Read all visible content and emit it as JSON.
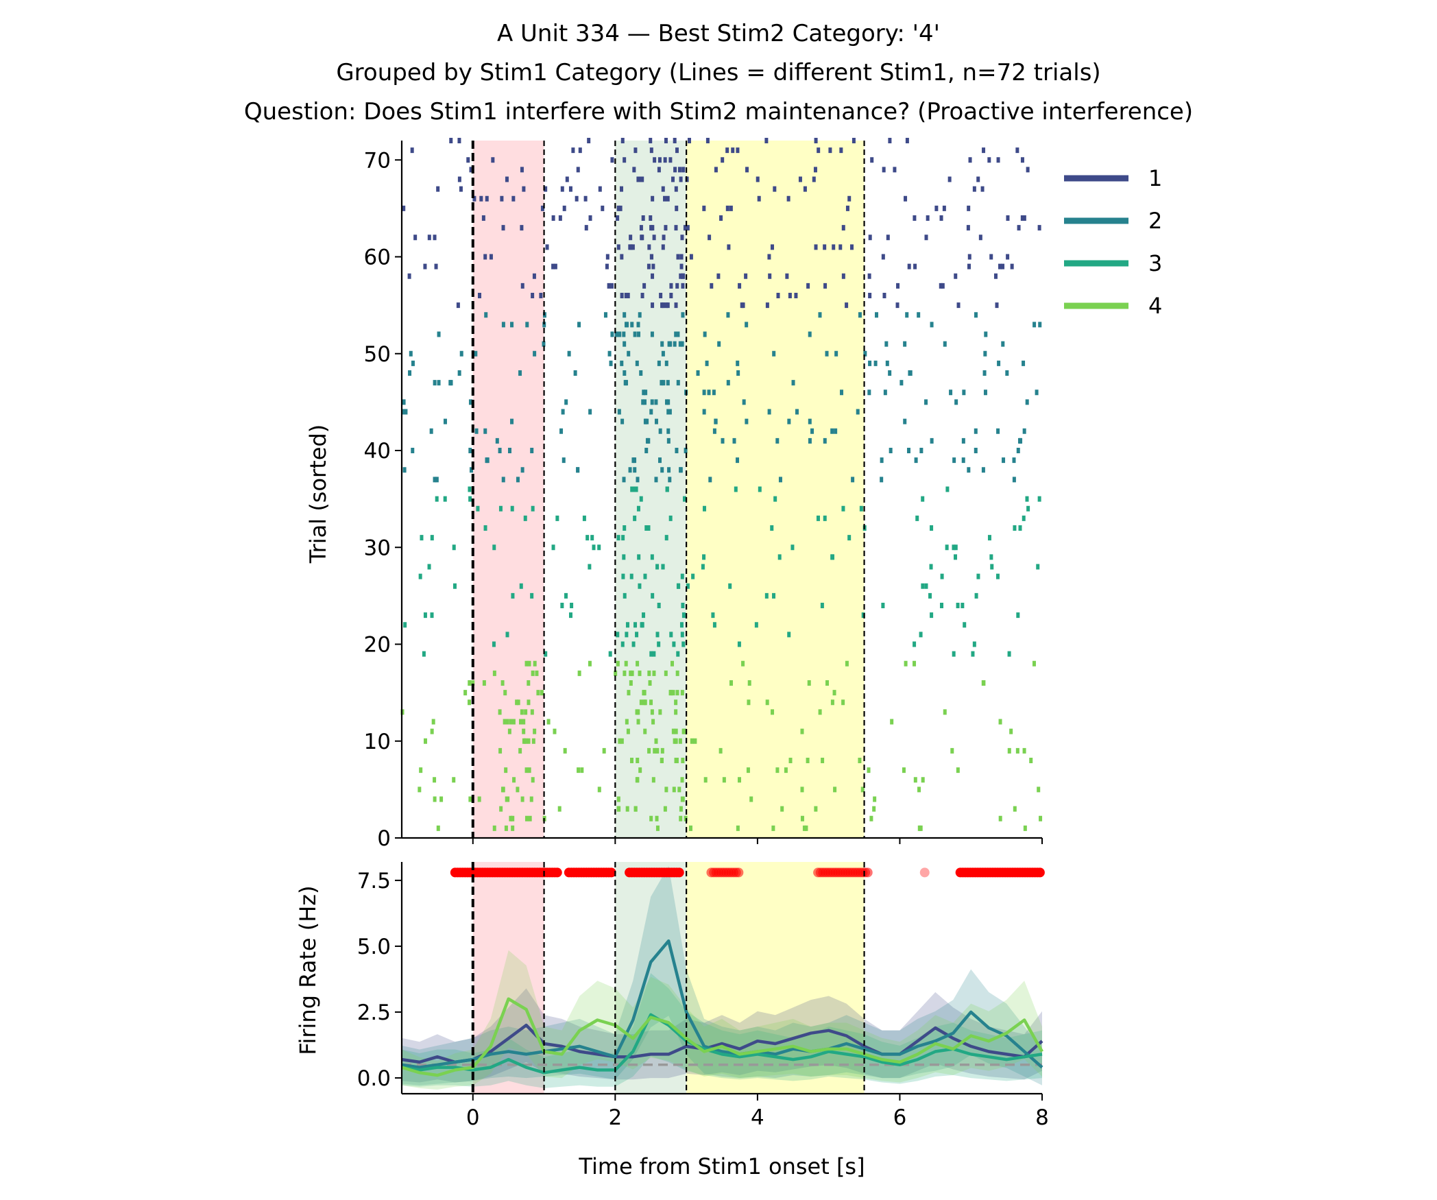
{
  "title_lines": [
    "A Unit 334 — Best Stim2 Category: '4'",
    "Grouped by Stim1 Category (Lines = different Stim1, n=72 trials)",
    "Question: Does Stim1 interfere with Stim2 maintenance? (Proactive interference)"
  ],
  "colors": {
    "cat1": "#3e4a89",
    "cat2": "#26828e",
    "cat3": "#22a884",
    "cat4": "#7ad151",
    "stim1_band": "#ffdde0",
    "stim2_band": "#e3f0e4",
    "delay_band": "#ffffc5",
    "sig_marker": "#ff0000",
    "baseline": "#999999"
  },
  "chart_data": [
    {
      "type": "scatter",
      "subtype": "raster",
      "ylabel": "Trial (sorted)",
      "xlim": [
        -1,
        8
      ],
      "ylim": [
        0,
        72
      ],
      "yticks": [
        0,
        10,
        20,
        30,
        40,
        50,
        60,
        70
      ],
      "shaded_epochs": [
        {
          "name": "stim1",
          "start": 0,
          "end": 1
        },
        {
          "name": "stim2",
          "start": 2,
          "end": 3
        },
        {
          "name": "delay",
          "start": 3,
          "end": 5.5
        }
      ],
      "event_lines": [
        0,
        1,
        2,
        3,
        5.5
      ],
      "groups": [
        {
          "category": "1",
          "trial_range": [
            54,
            72
          ],
          "spikes_per_trial": 14
        },
        {
          "category": "2",
          "trial_range": [
            36,
            54
          ],
          "spikes_per_trial": 13
        },
        {
          "category": "3",
          "trial_range": [
            18,
            36
          ],
          "spikes_per_trial": 9
        },
        {
          "category": "4",
          "trial_range": [
            0,
            18
          ],
          "spikes_per_trial": 13
        }
      ],
      "legend": [
        "1",
        "2",
        "3",
        "4"
      ],
      "legend_position": "upper right, outside plot"
    },
    {
      "type": "line",
      "xlabel": "Time from Stim1 onset [s]",
      "ylabel": "Firing Rate (Hz)",
      "xlim": [
        -1,
        8
      ],
      "ylim": [
        -0.6,
        8.2
      ],
      "xticks": [
        0,
        2,
        4,
        6,
        8
      ],
      "yticks": [
        0.0,
        2.5,
        5.0,
        7.5
      ],
      "ytick_labels": [
        "0.0",
        "2.5",
        "5.0",
        "7.5"
      ],
      "xtick_labels": [
        "0",
        "2",
        "4",
        "6",
        "8"
      ],
      "baseline": 0.5,
      "x": [
        -1,
        -0.75,
        -0.5,
        -0.25,
        0,
        0.25,
        0.5,
        0.75,
        1,
        1.25,
        1.5,
        1.75,
        2,
        2.25,
        2.5,
        2.75,
        3,
        3.25,
        3.5,
        3.75,
        4,
        4.25,
        4.5,
        4.75,
        5,
        5.25,
        5.5,
        5.75,
        6,
        6.25,
        6.5,
        6.75,
        7,
        7.25,
        7.5,
        7.75,
        8
      ],
      "series": [
        {
          "name": "1",
          "values": [
            0.7,
            0.6,
            0.8,
            0.6,
            0.7,
            1.0,
            1.5,
            2.0,
            1.3,
            1.2,
            1.0,
            0.9,
            0.8,
            0.8,
            0.9,
            0.9,
            1.2,
            1.1,
            1.3,
            1.1,
            1.4,
            1.3,
            1.5,
            1.7,
            1.8,
            1.6,
            1.2,
            0.9,
            0.9,
            1.4,
            1.9,
            1.5,
            1.2,
            1.0,
            0.9,
            0.8,
            1.4
          ]
        },
        {
          "name": "2",
          "values": [
            0.5,
            0.4,
            0.5,
            0.6,
            0.7,
            0.9,
            1.0,
            0.9,
            1.0,
            1.1,
            1.2,
            1.0,
            0.8,
            2.2,
            4.4,
            5.2,
            2.5,
            1.2,
            1.0,
            0.9,
            1.0,
            0.9,
            1.1,
            1.0,
            1.1,
            1.3,
            1.1,
            0.9,
            0.9,
            1.2,
            1.4,
            1.7,
            2.5,
            1.9,
            1.6,
            1.0,
            0.4
          ]
        },
        {
          "name": "3",
          "values": [
            0.4,
            0.3,
            0.4,
            0.4,
            0.3,
            0.4,
            0.7,
            0.4,
            0.2,
            0.3,
            0.4,
            0.3,
            0.3,
            1.0,
            2.4,
            2.0,
            1.4,
            1.1,
            0.9,
            0.8,
            0.9,
            0.8,
            0.7,
            0.8,
            1.0,
            0.9,
            0.8,
            0.6,
            0.5,
            0.7,
            1.0,
            1.1,
            0.9,
            0.8,
            0.7,
            0.8,
            0.9
          ]
        },
        {
          "name": "4",
          "values": [
            0.4,
            0.2,
            0.1,
            0.3,
            0.4,
            1.2,
            3.0,
            2.6,
            1.0,
            0.9,
            1.8,
            2.2,
            2.0,
            1.5,
            2.3,
            2.1,
            1.5,
            1.0,
            1.2,
            0.9,
            1.0,
            1.1,
            1.2,
            1.0,
            1.1,
            1.1,
            0.9,
            0.7,
            0.6,
            0.9,
            1.3,
            1.1,
            1.6,
            1.4,
            1.7,
            2.2,
            1.0
          ]
        }
      ],
      "significance_marker_y": 7.8,
      "significance_intervals": [
        {
          "start": -0.25,
          "end": 1.2,
          "strength": "strong"
        },
        {
          "start": 1.35,
          "end": 1.95,
          "strength": "strong"
        },
        {
          "start": 2.2,
          "end": 2.9,
          "strength": "strong"
        },
        {
          "start": 3.35,
          "end": 3.75,
          "strength": "medium"
        },
        {
          "start": 4.85,
          "end": 5.55,
          "strength": "medium"
        },
        {
          "start": 6.35,
          "end": 6.35,
          "strength": "weak"
        },
        {
          "start": 6.85,
          "end": 8.0,
          "strength": "strong"
        }
      ]
    }
  ]
}
